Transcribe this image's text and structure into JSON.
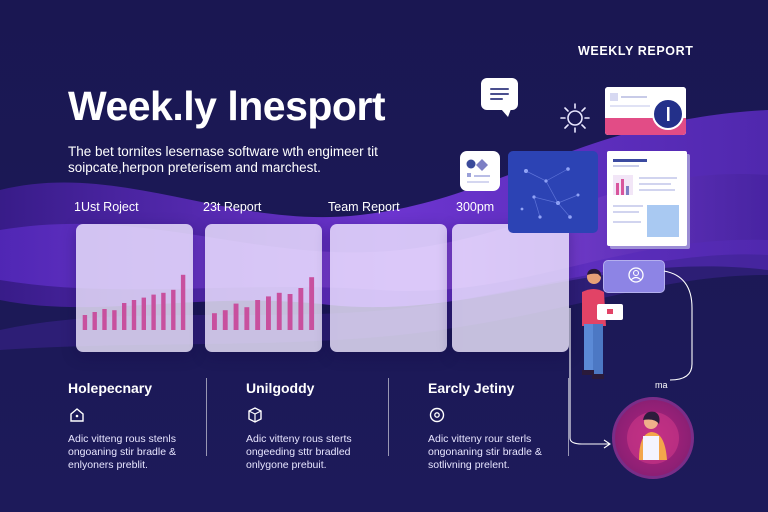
{
  "header": {
    "eyebrow": "WEEKLY REPORT",
    "title": "Week.ly lnesport",
    "subtitle": "The bet tornites lesernase software wth engimeer tit soipcate,herpon preterisem and marchest."
  },
  "report_cards": [
    {
      "label": "1Ust Roject",
      "bars": [
        0.25,
        0.3,
        0.35,
        0.33,
        0.45,
        0.5,
        0.54,
        0.59,
        0.62,
        0.67,
        0.92
      ]
    },
    {
      "label": "23t Report",
      "bars": [
        0.28,
        0.33,
        0.44,
        0.38,
        0.5,
        0.56,
        0.62,
        0.6,
        0.7,
        0.88
      ]
    },
    {
      "label": "Team Report",
      "bars": []
    },
    {
      "label": "300pm",
      "bars": []
    }
  ],
  "features": [
    {
      "title": "Holepecnary",
      "icon": "home-icon",
      "desc": "Adic vitteng rous stenls ongoaning stir bradle & enlyoners preblit."
    },
    {
      "title": "Unilgoddy",
      "icon": "cube-icon",
      "desc": "Adic vitteny rous sterts ongeeding sttr bradled onlygone prebuit."
    },
    {
      "title": "Earcly Jetiny",
      "icon": "gear-icon",
      "desc": "Adic vitteny rour sterls ongonaning stir bradle & sotlivning prelent."
    }
  ],
  "decor": {
    "tag": "ma"
  },
  "colors": {
    "background": "#1b1854",
    "wave": "#7b3fe0",
    "bar": "#c8509e",
    "card": "#efe8ff",
    "blue_panel": "#2c43b4",
    "avatar_ring": "#b3257e"
  }
}
